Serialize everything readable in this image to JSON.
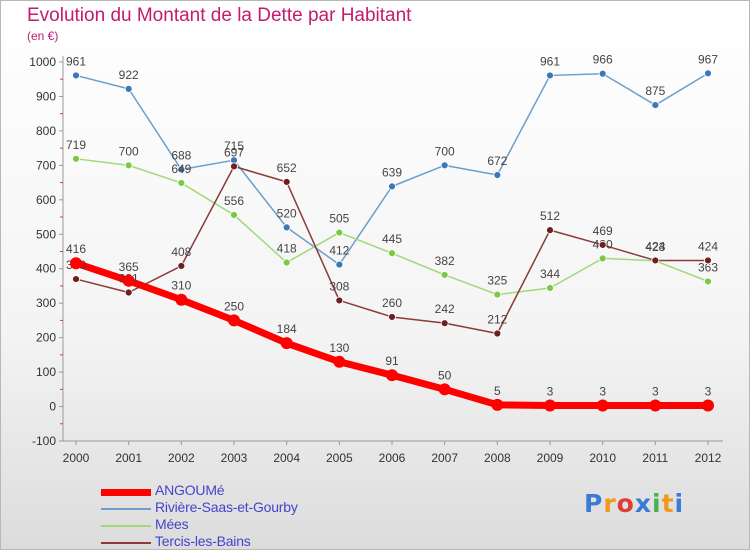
{
  "title": "Evolution du Montant de la Dette par Habitant",
  "unit": "(en €)",
  "logo": {
    "text": "Proxiti",
    "colors": [
      "#3a7bd5",
      "#f09a1a",
      "#e03c31",
      "#3a7bd5",
      "#4caf50",
      "#f09a1a",
      "#3a7bd5"
    ]
  },
  "colors": {
    "axis_text": "#333333",
    "title": "#c41a72",
    "legend_text": "#4444cc"
  },
  "chart_data": {
    "type": "line",
    "categories": [
      "2000",
      "2001",
      "2002",
      "2003",
      "2004",
      "2005",
      "2006",
      "2007",
      "2008",
      "2009",
      "2010",
      "2011",
      "2012"
    ],
    "ylim": [
      -100,
      1000
    ],
    "yticks": [
      -100,
      0,
      100,
      200,
      300,
      400,
      500,
      600,
      700,
      800,
      900,
      1000
    ],
    "grid": false,
    "legend_position": "bottom-left",
    "series": [
      {
        "name": "Rivière-Saas-et-Gourby",
        "color": "#6a9fcc",
        "marker": "#3b78b8",
        "thick": false,
        "values": [
          961,
          922,
          688,
          715,
          520,
          412,
          639,
          700,
          672,
          961,
          966,
          875,
          967
        ]
      },
      {
        "name": "Mées",
        "color": "#a0d87a",
        "marker": "#7ac943",
        "thick": false,
        "values": [
          719,
          700,
          649,
          556,
          418,
          505,
          445,
          382,
          325,
          344,
          430,
          423,
          363
        ]
      },
      {
        "name": "Tercis-les-Bains",
        "color": "#8b3a3a",
        "marker": "#6e1f1f",
        "thick": false,
        "values": [
          370,
          331,
          408,
          697,
          652,
          308,
          260,
          242,
          212,
          512,
          469,
          424,
          424
        ]
      },
      {
        "name": "ANGOUMé",
        "color": "#ff0000",
        "marker": "#ff0000",
        "thick": true,
        "values": [
          416,
          365,
          310,
          250,
          184,
          130,
          91,
          50,
          5,
          3,
          3,
          3,
          3
        ]
      }
    ]
  }
}
